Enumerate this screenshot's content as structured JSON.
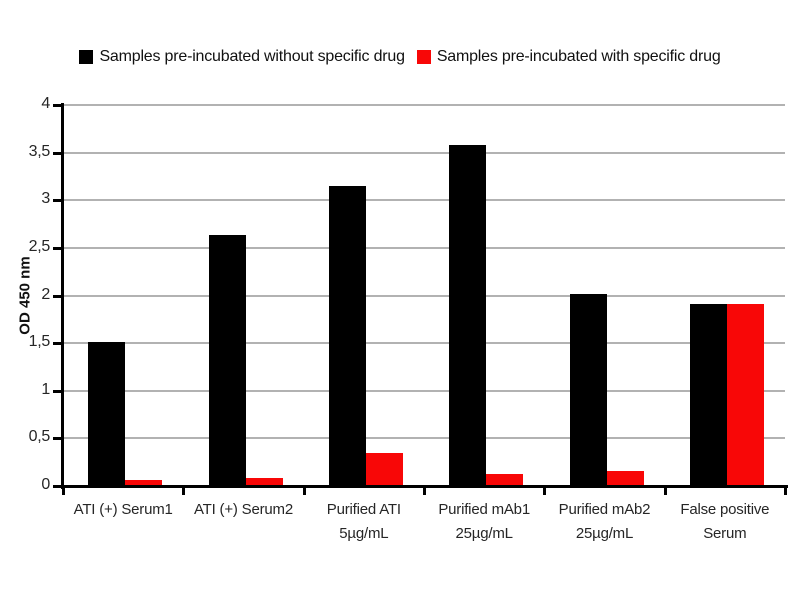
{
  "legend": {
    "items": [
      {
        "label": "Samples pre-incubated without specific drug",
        "color": "#000000"
      },
      {
        "label": "Samples pre-incubated with specific drug",
        "color": "#F80707"
      }
    ]
  },
  "chart_data": {
    "type": "bar",
    "title": "",
    "xlabel": "",
    "ylabel": "OD 450 nm",
    "ylim": [
      0,
      4
    ],
    "ytick_interval": 0.5,
    "ytick_labels": [
      "0",
      "0,5",
      "1",
      "1,5",
      "2",
      "2,5",
      "3",
      "3,5",
      "4"
    ],
    "grid": true,
    "legend_position": "top",
    "categories": [
      "ATI (+) Serum1",
      "ATI (+) Serum2",
      "Purified ATI\n5µg/mL",
      "Purified mAb1\n25µg/mL",
      "Purified mAb2\n25µg/mL",
      "False positive\nSerum"
    ],
    "series": [
      {
        "name": "Samples pre-incubated without specific drug",
        "color": "#000000",
        "values": [
          1.51,
          2.63,
          3.15,
          3.58,
          2.02,
          1.91
        ]
      },
      {
        "name": "Samples pre-incubated with specific drug",
        "color": "#F80707",
        "values": [
          0.06,
          0.08,
          0.35,
          0.13,
          0.16,
          1.91
        ]
      }
    ]
  },
  "colors": {
    "background": "#ffffff",
    "gridline": "#b2b2b2",
    "axis": "#000000",
    "tick_text": "#262626"
  }
}
